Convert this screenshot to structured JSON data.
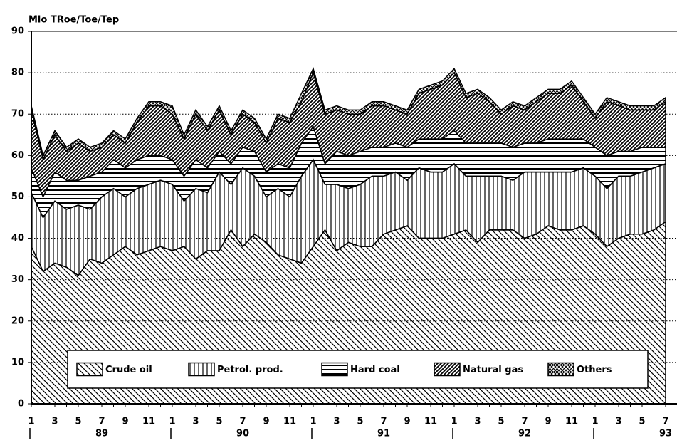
{
  "chart_data": {
    "type": "area",
    "ylabel": "Mlo TRoe/Toe/Tep",
    "categories": [
      "1",
      null,
      "3",
      null,
      "5",
      null,
      "7",
      null,
      "9",
      null,
      "11",
      null,
      "1",
      null,
      "3",
      null,
      "5",
      null,
      "7",
      null,
      "9",
      null,
      "11",
      null,
      "1",
      null,
      "3",
      null,
      "5",
      null,
      "7",
      null,
      "9",
      null,
      "11",
      null,
      "1",
      null,
      "3",
      null,
      "5",
      null,
      "7",
      null,
      "9",
      null,
      "11",
      null,
      "1",
      null,
      "3",
      null,
      "5",
      null,
      "7"
    ],
    "years": [
      "89",
      "90",
      "91",
      "92",
      "93"
    ],
    "stacked": true,
    "series": [
      {
        "name": "Crude oil",
        "color": "#000000",
        "values": [
          38,
          32,
          34,
          33,
          31,
          35,
          34,
          36,
          38,
          36,
          37,
          38,
          37,
          38,
          35,
          37,
          37,
          42,
          38,
          41,
          39,
          36,
          35,
          34,
          38,
          42,
          37,
          39,
          38,
          38,
          41,
          42,
          43,
          40,
          40,
          40,
          41,
          42,
          39,
          42,
          42,
          42,
          40,
          41,
          43,
          42,
          42,
          43,
          41,
          38,
          40,
          41,
          41,
          42,
          44
        ]
      },
      {
        "name": "Petrol. prod.",
        "color": "#000000",
        "values": [
          13,
          13,
          15,
          14,
          17,
          12,
          16,
          16,
          12,
          16,
          16,
          16,
          16,
          11,
          17,
          14,
          19,
          11,
          19,
          14,
          11,
          16,
          15,
          21,
          21,
          11,
          16,
          13,
          15,
          17,
          14,
          14,
          11,
          17,
          16,
          16,
          17,
          13,
          16,
          13,
          13,
          12,
          16,
          15,
          13,
          14,
          14,
          14,
          14,
          14,
          15,
          14,
          15,
          15,
          14
        ]
      },
      {
        "name": "Hard coal",
        "color": "#000000",
        "values": [
          6,
          5,
          7,
          7,
          6,
          8,
          6,
          7,
          7,
          7,
          7,
          6,
          6,
          6,
          7,
          6,
          5,
          5,
          5,
          6,
          6,
          6,
          7,
          8,
          8,
          5,
          8,
          8,
          8,
          7,
          7,
          7,
          8,
          7,
          8,
          8,
          8,
          8,
          8,
          8,
          8,
          8,
          7,
          7,
          8,
          8,
          8,
          7,
          7,
          8,
          6,
          6,
          6,
          5,
          4
        ]
      },
      {
        "name": "Natural gas",
        "color": "#000000",
        "values": [
          14,
          9,
          9,
          7,
          9,
          6,
          6,
          6,
          6,
          9,
          12,
          12,
          11,
          9,
          11,
          9,
          10,
          7,
          8,
          7,
          7,
          11,
          11,
          10,
          13,
          12,
          10,
          10,
          9,
          10,
          10,
          8,
          8,
          11,
          12,
          13,
          14,
          11,
          12,
          10,
          7,
          10,
          8,
          10,
          11,
          11,
          13,
          9,
          7,
          13,
          11,
          10,
          9,
          9,
          11
        ]
      },
      {
        "name": "Others",
        "color": "#000000",
        "values": [
          1,
          1,
          1,
          1,
          1,
          1,
          1,
          1,
          1,
          1,
          1,
          1,
          2,
          1,
          1,
          1,
          1,
          1,
          1,
          1,
          1,
          1,
          1,
          2,
          1,
          1,
          1,
          1,
          1,
          1,
          1,
          1,
          1,
          1,
          1,
          1,
          1,
          1,
          1,
          1,
          1,
          1,
          1,
          1,
          1,
          1,
          1,
          1,
          1,
          1,
          1,
          1,
          1,
          1,
          1
        ]
      }
    ],
    "ylim": [
      0,
      90
    ],
    "yticks": [
      0,
      10,
      20,
      30,
      40,
      50,
      60,
      70,
      80,
      90
    ],
    "grid": true,
    "legend": "bottom"
  }
}
